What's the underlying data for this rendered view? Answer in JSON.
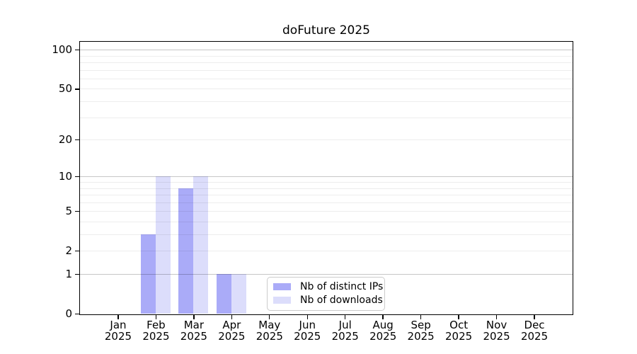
{
  "chart_data": {
    "type": "bar",
    "title": "doFuture 2025",
    "categories": [
      "Jan 2025",
      "Feb 2025",
      "Mar 2025",
      "Apr 2025",
      "May 2025",
      "Jun 2025",
      "Jul 2025",
      "Aug 2025",
      "Sep 2025",
      "Oct 2025",
      "Nov 2025",
      "Dec 2025"
    ],
    "series": [
      {
        "name": "Nb of distinct IPs",
        "color": "#aaabf8",
        "values": [
          0,
          3,
          8,
          1,
          0,
          0,
          0,
          0,
          0,
          0,
          0,
          0
        ]
      },
      {
        "name": "Nb of downloads",
        "color": "#dcddfb",
        "values": [
          0,
          10,
          10,
          1,
          0,
          0,
          0,
          0,
          0,
          0,
          0,
          0
        ]
      }
    ],
    "yaxis": {
      "scale": "log1p",
      "labeled_ticks": [
        0,
        1,
        2,
        5,
        10,
        20,
        50,
        100
      ],
      "decade_gridlines": [
        1,
        10,
        100
      ],
      "minor_gridlines": [
        2,
        3,
        4,
        5,
        6,
        7,
        8,
        9,
        20,
        30,
        40,
        50,
        60,
        70,
        80,
        90
      ],
      "range": [
        0,
        115
      ]
    },
    "xlabel": "",
    "ylabel": "",
    "grid": true,
    "legend": {
      "location": "lower center inside plot",
      "entries": [
        "Nb of distinct IPs",
        "Nb of downloads"
      ]
    }
  },
  "colors": {
    "bar_distinct_ips": "#aaabf8",
    "bar_downloads": "#dcddfb",
    "decade_grid": "rgba(0,0,0,0.22)",
    "minor_grid": "rgba(0,0,0,0.07)",
    "axis_frame": "#000000",
    "legend_border": "#cbcbcb",
    "text": "#000000",
    "background": "#ffffff"
  }
}
